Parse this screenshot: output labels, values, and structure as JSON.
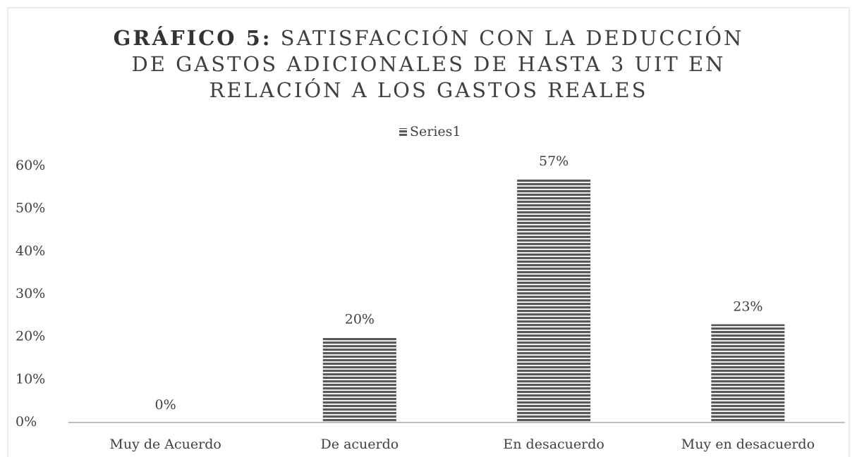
{
  "chart_data": {
    "type": "bar",
    "title_lead": "GRÁFICO 5:",
    "title": "SATISFACCIÓN CON LA DEDUCCIÓN DE GASTOS ADICIONALES DE HASTA 3 UIT EN RELACIÓN A LOS GASTOS REALES",
    "categories": [
      "Muy de Acuerdo",
      "De acuerdo",
      "En desacuerdo",
      "Muy en desacuerdo"
    ],
    "series": [
      {
        "name": "Series1",
        "color": "#595959",
        "values": [
          0,
          20,
          57,
          23
        ],
        "value_labels": [
          "0%",
          "20%",
          "57%",
          "23%"
        ]
      }
    ],
    "ylim": [
      0,
      60
    ],
    "yticks": [
      {
        "value": 0,
        "label": "0%"
      },
      {
        "value": 10,
        "label": "10%"
      },
      {
        "value": 20,
        "label": "20%"
      },
      {
        "value": 30,
        "label": "30%"
      },
      {
        "value": 40,
        "label": "40%"
      },
      {
        "value": 50,
        "label": "50%"
      },
      {
        "value": 60,
        "label": "60%"
      }
    ],
    "legend": "top"
  }
}
